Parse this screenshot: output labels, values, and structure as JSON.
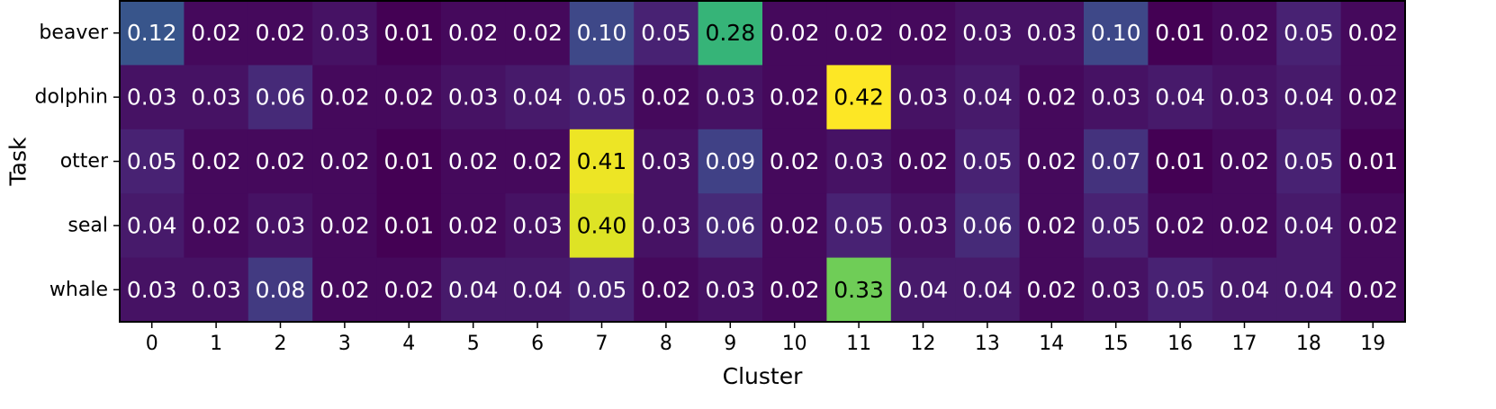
{
  "chart_data": {
    "type": "heatmap",
    "title": "",
    "xlabel": "Cluster",
    "ylabel": "Task",
    "colormap": "viridis",
    "vmin": 0.01,
    "vmax": 0.42,
    "grid": false,
    "x_categories": [
      "0",
      "1",
      "2",
      "3",
      "4",
      "5",
      "6",
      "7",
      "8",
      "9",
      "10",
      "11",
      "12",
      "13",
      "14",
      "15",
      "16",
      "17",
      "18",
      "19"
    ],
    "y_categories": [
      "beaver",
      "dolphin",
      "otter",
      "seal",
      "whale"
    ],
    "values": [
      [
        0.12,
        0.02,
        0.02,
        0.03,
        0.01,
        0.02,
        0.02,
        0.1,
        0.05,
        0.28,
        0.02,
        0.02,
        0.02,
        0.03,
        0.03,
        0.1,
        0.01,
        0.02,
        0.05,
        0.02
      ],
      [
        0.03,
        0.03,
        0.06,
        0.02,
        0.02,
        0.03,
        0.04,
        0.05,
        0.02,
        0.03,
        0.02,
        0.42,
        0.03,
        0.04,
        0.02,
        0.03,
        0.04,
        0.03,
        0.04,
        0.02
      ],
      [
        0.05,
        0.02,
        0.02,
        0.02,
        0.01,
        0.02,
        0.02,
        0.41,
        0.03,
        0.09,
        0.02,
        0.03,
        0.02,
        0.05,
        0.02,
        0.07,
        0.01,
        0.02,
        0.05,
        0.01
      ],
      [
        0.04,
        0.02,
        0.03,
        0.02,
        0.01,
        0.02,
        0.03,
        0.4,
        0.03,
        0.06,
        0.02,
        0.05,
        0.03,
        0.06,
        0.02,
        0.05,
        0.02,
        0.02,
        0.04,
        0.02
      ],
      [
        0.03,
        0.03,
        0.08,
        0.02,
        0.02,
        0.04,
        0.04,
        0.05,
        0.02,
        0.03,
        0.02,
        0.33,
        0.04,
        0.04,
        0.02,
        0.03,
        0.05,
        0.04,
        0.04,
        0.02
      ]
    ],
    "value_labels": [
      [
        "0.12",
        "0.02",
        "0.02",
        "0.03",
        "0.01",
        "0.02",
        "0.02",
        "0.10",
        "0.05",
        "0.28",
        "0.02",
        "0.02",
        "0.02",
        "0.03",
        "0.03",
        "0.10",
        "0.01",
        "0.02",
        "0.05",
        "0.02"
      ],
      [
        "0.03",
        "0.03",
        "0.06",
        "0.02",
        "0.02",
        "0.03",
        "0.04",
        "0.05",
        "0.02",
        "0.03",
        "0.02",
        "0.42",
        "0.03",
        "0.04",
        "0.02",
        "0.03",
        "0.04",
        "0.03",
        "0.04",
        "0.02"
      ],
      [
        "0.05",
        "0.02",
        "0.02",
        "0.02",
        "0.01",
        "0.02",
        "0.02",
        "0.41",
        "0.03",
        "0.09",
        "0.02",
        "0.03",
        "0.02",
        "0.05",
        "0.02",
        "0.07",
        "0.01",
        "0.02",
        "0.05",
        "0.01"
      ],
      [
        "0.04",
        "0.02",
        "0.03",
        "0.02",
        "0.01",
        "0.02",
        "0.03",
        "0.40",
        "0.03",
        "0.06",
        "0.02",
        "0.05",
        "0.03",
        "0.06",
        "0.02",
        "0.05",
        "0.02",
        "0.02",
        "0.04",
        "0.02"
      ],
      [
        "0.03",
        "0.03",
        "0.08",
        "0.02",
        "0.02",
        "0.04",
        "0.04",
        "0.05",
        "0.02",
        "0.03",
        "0.02",
        "0.33",
        "0.04",
        "0.04",
        "0.02",
        "0.03",
        "0.05",
        "0.04",
        "0.04",
        "0.02"
      ]
    ]
  }
}
